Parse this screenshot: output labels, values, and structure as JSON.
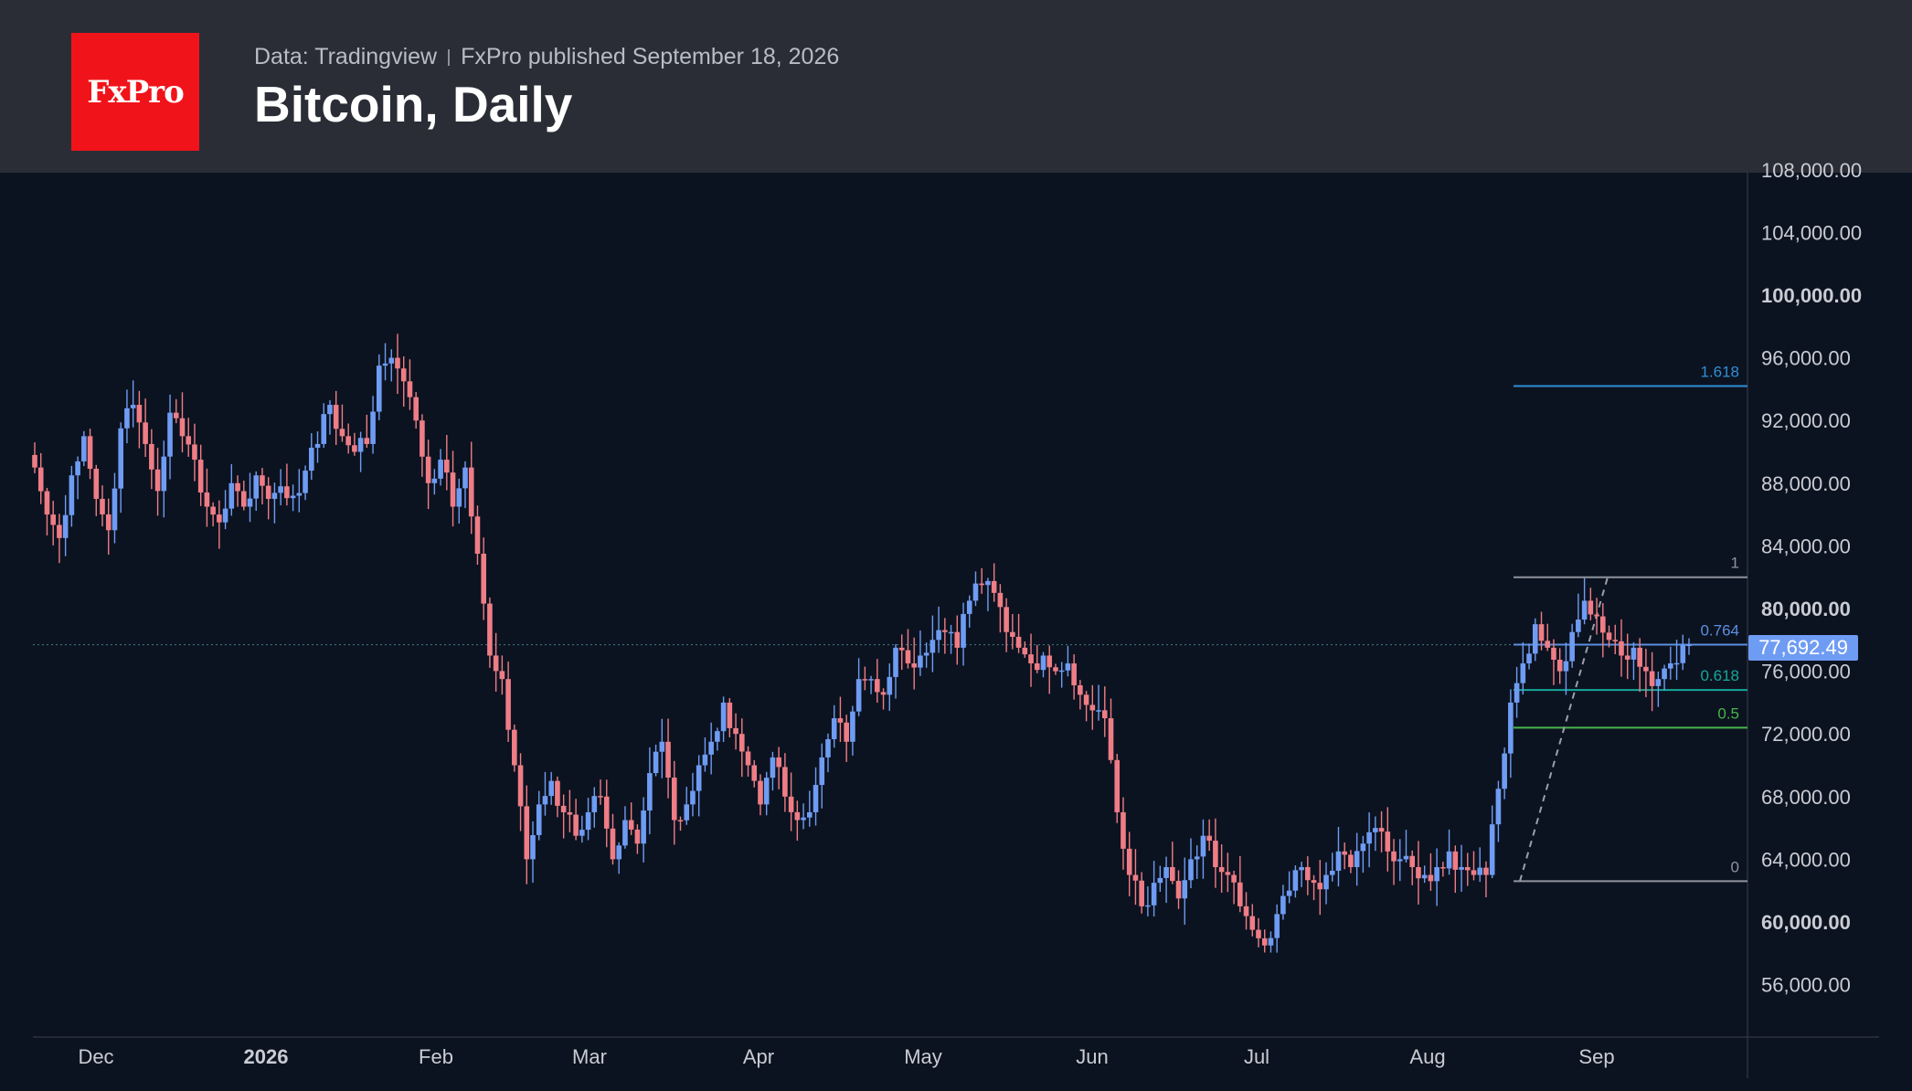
{
  "header": {
    "logo_text": "FxPro",
    "data_source": "Data: Tradingview",
    "published": "FxPro published September 18, 2026",
    "title": "Bitcoin, Daily"
  },
  "colors": {
    "background": "#0c1320",
    "header": "#2a2d36",
    "logo": "#f0141a",
    "up": "#6f9cf3",
    "down": "#ef7d86",
    "fib_1618": "#2f8fd8",
    "fib_1": "#8e939e",
    "fib_0764": "#5b8fe0",
    "fib_0618": "#16a79a",
    "fib_05": "#47b549",
    "fib_0": "#8e939e",
    "axis_text": "#c9ccd3"
  },
  "last_price_label": "77,692.49",
  "chart_data": {
    "type": "candlestick",
    "title": "Bitcoin, Daily",
    "x_ticks": [
      "Dec",
      "2026",
      "Feb",
      "Mar",
      "Apr",
      "May",
      "Jun",
      "Jul",
      "Aug",
      "Sep"
    ],
    "y_ticks": [
      {
        "value": 108000,
        "label": "108,000.00",
        "bold": false
      },
      {
        "value": 104000,
        "label": "104,000.00",
        "bold": false
      },
      {
        "value": 100000,
        "label": "100,000.00",
        "bold": true
      },
      {
        "value": 96000,
        "label": "96,000.00",
        "bold": false
      },
      {
        "value": 92000,
        "label": "92,000.00",
        "bold": false
      },
      {
        "value": 88000,
        "label": "88,000.00",
        "bold": false
      },
      {
        "value": 84000,
        "label": "84,000.00",
        "bold": false
      },
      {
        "value": 80000,
        "label": "80,000.00",
        "bold": true
      },
      {
        "value": 76000,
        "label": "76,000.00",
        "bold": false
      },
      {
        "value": 72000,
        "label": "72,000.00",
        "bold": false
      },
      {
        "value": 68000,
        "label": "68,000.00",
        "bold": false
      },
      {
        "value": 64000,
        "label": "64,000.00",
        "bold": false
      },
      {
        "value": 60000,
        "label": "60,000.00",
        "bold": true
      },
      {
        "value": 56000,
        "label": "56,000.00",
        "bold": false
      }
    ],
    "ylim": [
      52000,
      108500
    ],
    "last_price": 77692.49,
    "fib_levels": [
      {
        "label": "1.618",
        "value": 94200
      },
      {
        "label": "1",
        "value": 82000
      },
      {
        "label": "0.764",
        "value": 77700
      },
      {
        "label": "0.618",
        "value": 74800
      },
      {
        "label": "0.5",
        "value": 72400
      },
      {
        "label": "0",
        "value": 62600
      }
    ],
    "close_path": [
      89000,
      86000,
      84500,
      88500,
      91000,
      87000,
      85000,
      91500,
      93000,
      90500,
      87500,
      92500,
      91000,
      89500,
      86500,
      85500,
      88000,
      86500,
      88500,
      87000,
      87800,
      87200,
      88800,
      90500,
      93000,
      91000,
      90000,
      90500,
      95500,
      96000,
      94500,
      92000,
      88000,
      89500,
      86500,
      89000,
      83500,
      77000,
      75500,
      70000,
      64000,
      67500,
      69000,
      67000,
      65500,
      67000,
      68000,
      64000,
      66500,
      65000,
      69500,
      71500,
      66500,
      67500,
      70000,
      71500,
      74000,
      72000,
      70000,
      67500,
      70500,
      68000,
      66500,
      67000,
      70500,
      73000,
      71500,
      75500,
      75500,
      74500,
      77500,
      76500,
      77000,
      78000,
      78500,
      77500,
      80500,
      81500,
      81000,
      78500,
      77500,
      76500,
      77000,
      76000,
      76500,
      74500,
      73500,
      73000,
      67000,
      63000,
      61000,
      62500,
      63500,
      61500,
      64000,
      65500,
      63500,
      63000,
      61000,
      59500,
      58500,
      60500,
      62000,
      63500,
      62500,
      63000,
      64500,
      63500,
      65000,
      66000,
      64500,
      64000,
      63500,
      63000,
      63500,
      64500,
      63500,
      63000,
      63000,
      68500,
      74000,
      76500,
      79000,
      77500,
      76000,
      78500,
      80500,
      79500,
      78000,
      77000,
      77500,
      76000,
      75500,
      76500,
      77692
    ]
  }
}
